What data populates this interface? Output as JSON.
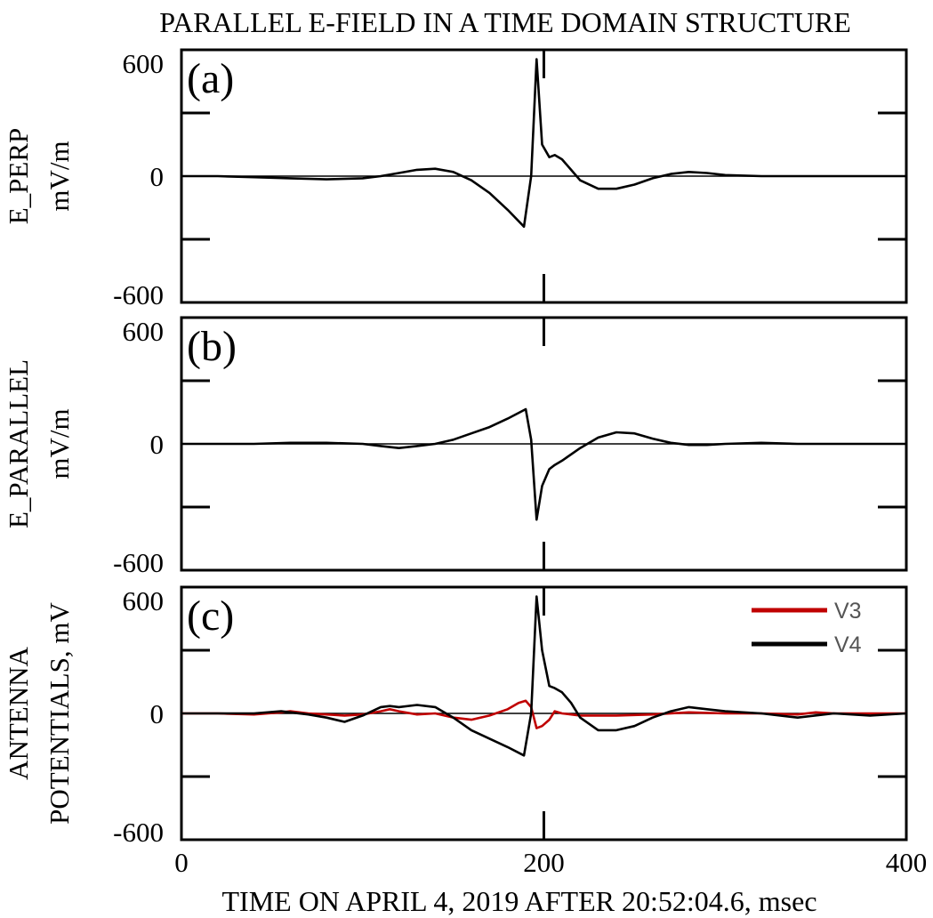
{
  "chart_data": [
    {
      "type": "line",
      "panel_label": "(a)",
      "title": "PARALLEL E-FIELD IN A TIME DOMAIN STRUCTURE",
      "ylabel_lines": [
        "E_PERP",
        "mV/m"
      ],
      "xlim": [
        0,
        400
      ],
      "ylim": [
        -600,
        600
      ],
      "yticks": [
        600,
        0,
        -600
      ],
      "ytick_labels": [
        "600",
        "0",
        "-600"
      ],
      "series": [
        {
          "color": "#000000",
          "x": [
            0,
            20,
            40,
            60,
            80,
            100,
            110,
            120,
            130,
            140,
            150,
            160,
            170,
            180,
            189,
            193,
            196,
            199,
            203,
            206,
            210,
            215,
            220,
            230,
            240,
            250,
            260,
            270,
            280,
            290,
            300,
            320,
            340,
            360,
            380,
            400
          ],
          "y": [
            0,
            0,
            -5,
            -10,
            -15,
            -10,
            0,
            15,
            30,
            35,
            20,
            -20,
            -80,
            -160,
            -240,
            0,
            555,
            150,
            90,
            100,
            80,
            30,
            -20,
            -60,
            -60,
            -40,
            -10,
            10,
            20,
            15,
            5,
            0,
            0,
            0,
            0,
            0
          ]
        }
      ]
    },
    {
      "type": "line",
      "panel_label": "(b)",
      "ylabel_lines": [
        "E_PARALLEL",
        "mV/m"
      ],
      "xlim": [
        0,
        400
      ],
      "ylim": [
        -600,
        600
      ],
      "yticks": [
        600,
        0,
        -600
      ],
      "ytick_labels": [
        "600",
        "0",
        "-600"
      ],
      "series": [
        {
          "color": "#000000",
          "x": [
            0,
            20,
            40,
            60,
            80,
            100,
            110,
            120,
            130,
            140,
            150,
            160,
            170,
            180,
            190,
            193,
            196,
            199,
            203,
            206,
            210,
            220,
            230,
            240,
            250,
            260,
            270,
            280,
            290,
            300,
            320,
            340,
            360,
            380,
            400
          ],
          "y": [
            0,
            0,
            0,
            5,
            5,
            0,
            -10,
            -20,
            -10,
            0,
            20,
            50,
            80,
            120,
            165,
            20,
            -360,
            -200,
            -120,
            -100,
            -80,
            -20,
            30,
            55,
            50,
            25,
            5,
            -5,
            -5,
            0,
            5,
            0,
            0,
            0,
            0
          ]
        }
      ]
    },
    {
      "type": "line",
      "panel_label": "(c)",
      "ylabel_lines": [
        "ANTENNA",
        "POTENTIALS, mV"
      ],
      "xlabel": "TIME  ON APRIL 4, 2019 AFTER 20:52:04.6, msec",
      "xlim": [
        0,
        400
      ],
      "ylim": [
        -600,
        600
      ],
      "yticks": [
        600,
        0,
        -600
      ],
      "ytick_labels": [
        "600",
        "0",
        "-600"
      ],
      "xticks": [
        0,
        200,
        400
      ],
      "xtick_labels": [
        "0",
        "200",
        "400"
      ],
      "legend_position": "top-right",
      "series": [
        {
          "name": "V3",
          "color": "#c00000",
          "x": [
            0,
            20,
            40,
            55,
            60,
            70,
            80,
            90,
            100,
            110,
            115,
            120,
            130,
            140,
            150,
            160,
            170,
            180,
            186,
            190,
            193,
            196,
            199,
            203,
            206,
            210,
            220,
            240,
            260,
            280,
            300,
            320,
            340,
            350,
            360,
            380,
            400
          ],
          "y": [
            0,
            0,
            -5,
            5,
            10,
            0,
            -5,
            -10,
            -5,
            10,
            20,
            10,
            -5,
            0,
            -20,
            -30,
            -10,
            20,
            50,
            60,
            30,
            -70,
            -60,
            -30,
            10,
            0,
            -10,
            -10,
            -5,
            5,
            0,
            0,
            -5,
            5,
            0,
            0,
            0
          ]
        },
        {
          "name": "V4",
          "color": "#000000",
          "x": [
            0,
            20,
            40,
            55,
            60,
            70,
            80,
            90,
            100,
            110,
            115,
            120,
            130,
            140,
            150,
            160,
            170,
            180,
            189,
            193,
            196,
            199,
            203,
            206,
            210,
            215,
            220,
            230,
            240,
            250,
            260,
            270,
            280,
            290,
            300,
            320,
            340,
            360,
            380,
            400
          ],
          "y": [
            0,
            0,
            0,
            10,
            5,
            -5,
            -20,
            -40,
            -10,
            30,
            35,
            30,
            40,
            30,
            -20,
            -80,
            -120,
            -160,
            -200,
            0,
            555,
            300,
            130,
            120,
            100,
            50,
            -20,
            -80,
            -80,
            -60,
            -20,
            10,
            30,
            20,
            10,
            0,
            -20,
            0,
            -10,
            0
          ]
        }
      ]
    }
  ]
}
